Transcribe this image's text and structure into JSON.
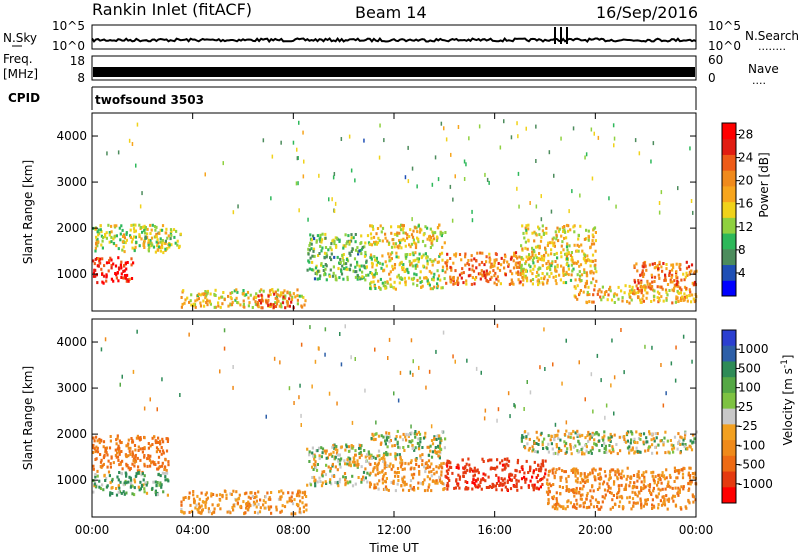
{
  "header": {
    "station": "Rankin Inlet (fitACF)",
    "beam": "Beam 14",
    "date": "16/Sep/2016"
  },
  "noise_panel": {
    "left_label": "N.Sky",
    "right_label": "N.Search",
    "right_legend_marks": "........",
    "left_ticks": [
      "10^5",
      "10^0"
    ],
    "right_ticks": [
      "10^5",
      "10^0"
    ]
  },
  "freq_panel": {
    "left_label_line1": "Freq.",
    "left_label_line2": "[MHz]",
    "right_label": "Nave",
    "right_legend_marks": "....",
    "left_ticks": [
      "18",
      "8"
    ],
    "right_ticks": [
      "60",
      "0"
    ]
  },
  "cpid_panel": {
    "label": "CPID",
    "text": "twofsound 3503"
  },
  "colors": {
    "frame": "#000000",
    "power_scale": [
      "#0000ff",
      "#1f4fb5",
      "#4c8c5c",
      "#2db85a",
      "#8fd13f",
      "#f0d21a",
      "#f7a51d",
      "#f08a1c",
      "#ee5b18",
      "#e11d12",
      "#ff0000"
    ],
    "velocity_scale": [
      "#2b3fd0",
      "#2d5fa8",
      "#2e8b57",
      "#55a845",
      "#7ec242",
      "#c8c8c8",
      "#f2a020",
      "#ef8a1a",
      "#ee6b14",
      "#e53a10",
      "#ff0000"
    ]
  },
  "chart_data": [
    {
      "type": "heatmap",
      "name": "Power",
      "title": "",
      "xlabel": "",
      "ylabel": "Slant Range [km]",
      "xlim": [
        "00:00",
        "24:00"
      ],
      "ylim": [
        200,
        4500
      ],
      "y_ticks": [
        1000,
        2000,
        3000,
        4000
      ],
      "colorbar": {
        "label": "Power [dB]",
        "range": [
          0,
          30
        ],
        "ticks": [
          4,
          8,
          12,
          16,
          20,
          24,
          28
        ]
      },
      "echo_regions": [
        {
          "t_start_h": 0.0,
          "t_end_h": 1.6,
          "range_km": [
            800,
            1400
          ],
          "value": 28
        },
        {
          "t_start_h": 0.0,
          "t_end_h": 3.0,
          "range_km": [
            1500,
            2100
          ],
          "value": 14
        },
        {
          "t_start_h": 2.0,
          "t_end_h": 3.5,
          "range_km": [
            1600,
            2000
          ],
          "value": 12
        },
        {
          "t_start_h": 3.5,
          "t_end_h": 8.5,
          "range_km": [
            300,
            700
          ],
          "value": 16
        },
        {
          "t_start_h": 6.5,
          "t_end_h": 8.0,
          "range_km": [
            300,
            600
          ],
          "value": 22
        },
        {
          "t_start_h": 8.5,
          "t_end_h": 11.0,
          "range_km": [
            900,
            1900
          ],
          "value": 10
        },
        {
          "t_start_h": 11.0,
          "t_end_h": 14.0,
          "range_km": [
            1600,
            2100
          ],
          "value": 16
        },
        {
          "t_start_h": 11.0,
          "t_end_h": 14.0,
          "range_km": [
            700,
            1500
          ],
          "value": 14
        },
        {
          "t_start_h": 14.0,
          "t_end_h": 17.0,
          "range_km": [
            800,
            1500
          ],
          "value": 22
        },
        {
          "t_start_h": 17.0,
          "t_end_h": 20.0,
          "range_km": [
            800,
            2100
          ],
          "value": 16
        },
        {
          "t_start_h": 19.0,
          "t_end_h": 24.0,
          "range_km": [
            400,
            800
          ],
          "value": 18
        },
        {
          "t_start_h": 21.5,
          "t_end_h": 24.0,
          "range_km": [
            700,
            1300
          ],
          "value": 22
        }
      ]
    },
    {
      "type": "heatmap",
      "name": "Velocity",
      "title": "",
      "xlabel": "Time UT",
      "ylabel": "Slant Range [km]",
      "xlim": [
        "00:00",
        "24:00"
      ],
      "ylim": [
        200,
        4500
      ],
      "x_ticks": [
        "00:00",
        "04:00",
        "08:00",
        "12:00",
        "16:00",
        "20:00",
        "00:00"
      ],
      "y_ticks": [
        1000,
        2000,
        3000,
        4000
      ],
      "colorbar": {
        "label": "Velocity [m s^-1]",
        "ticks": [
          "1000",
          "500",
          "100",
          "25",
          "-25",
          "-100",
          "-500",
          "-1000"
        ]
      },
      "echo_regions": [
        {
          "t_start_h": 0.0,
          "t_end_h": 3.0,
          "range_km": [
            1200,
            2000
          ],
          "value": -300
        },
        {
          "t_start_h": 0.0,
          "t_end_h": 3.0,
          "range_km": [
            700,
            1200
          ],
          "value": 100
        },
        {
          "t_start_h": 3.5,
          "t_end_h": 8.5,
          "range_km": [
            300,
            800
          ],
          "value": -150
        },
        {
          "t_start_h": 8.5,
          "t_end_h": 11.0,
          "range_km": [
            900,
            1800
          ],
          "value": 0
        },
        {
          "t_start_h": 11.0,
          "t_end_h": 14.0,
          "range_km": [
            1500,
            2100
          ],
          "value": 0
        },
        {
          "t_start_h": 11.0,
          "t_end_h": 14.0,
          "range_km": [
            800,
            1500
          ],
          "value": -150
        },
        {
          "t_start_h": 14.0,
          "t_end_h": 18.0,
          "range_km": [
            800,
            1500
          ],
          "value": -700
        },
        {
          "t_start_h": 17.0,
          "t_end_h": 24.0,
          "range_km": [
            1600,
            2100
          ],
          "value": 0
        },
        {
          "t_start_h": 18.0,
          "t_end_h": 24.0,
          "range_km": [
            400,
            1300
          ],
          "value": -200
        }
      ]
    }
  ]
}
